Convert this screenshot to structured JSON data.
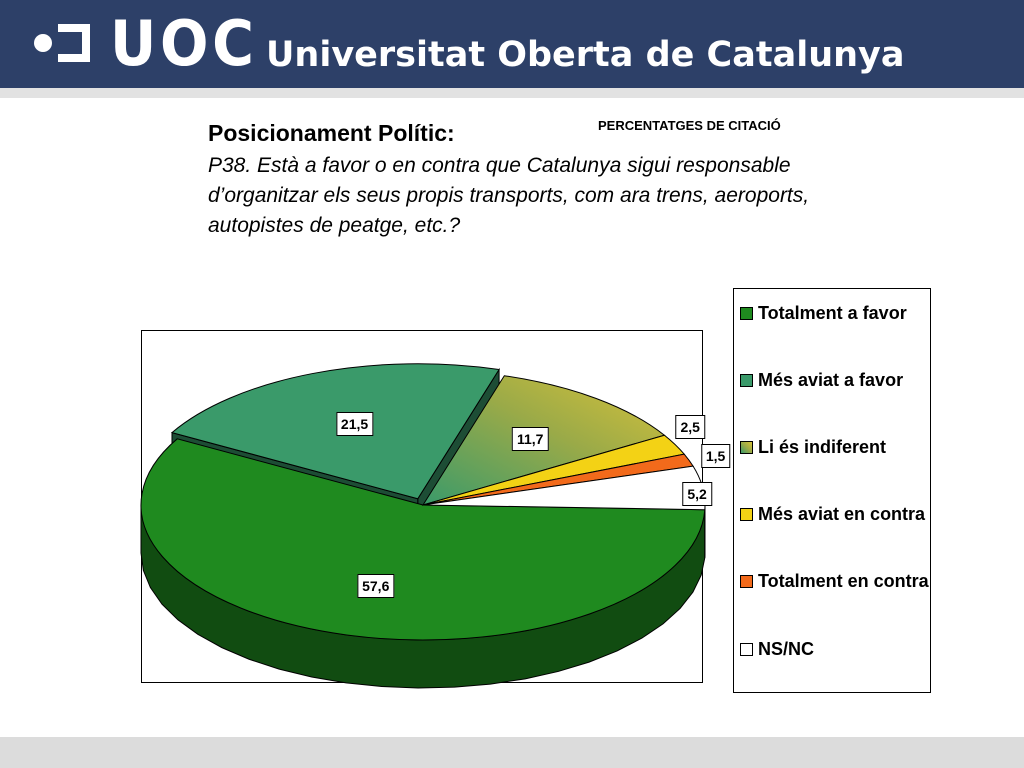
{
  "header": {
    "logo_text": "UOC",
    "university_name": "Universitat Oberta de Catalunya"
  },
  "slide": {
    "title": "Posicionament Polític:",
    "question": "P38. Està a favor o en contra que Catalunya sigui responsable d’organitzar els seus propis transports, com ara trens, aeroports, autopistes de peatge, etc.?"
  },
  "chart_data": {
    "type": "pie",
    "title": "",
    "subtitle": "PERCENTATGES DE CITACIÓ",
    "three_d": true,
    "legend_position": "right",
    "categories": [
      "Totalment a favor",
      "Més aviat a favor",
      "Li és indiferent",
      "Més aviat en contra",
      "Totalment en contra",
      "NS/NC"
    ],
    "values": [
      57.6,
      21.5,
      11.7,
      2.5,
      1.5,
      5.2
    ],
    "value_labels": [
      "57,6",
      "21,5",
      "11,7",
      "2,5",
      "1,5",
      "5,2"
    ],
    "colors": [
      "#1f8a1f",
      "#3a9a6a",
      "#9aaa48",
      "#f3d215",
      "#f26a1b",
      "#ffffff"
    ]
  }
}
